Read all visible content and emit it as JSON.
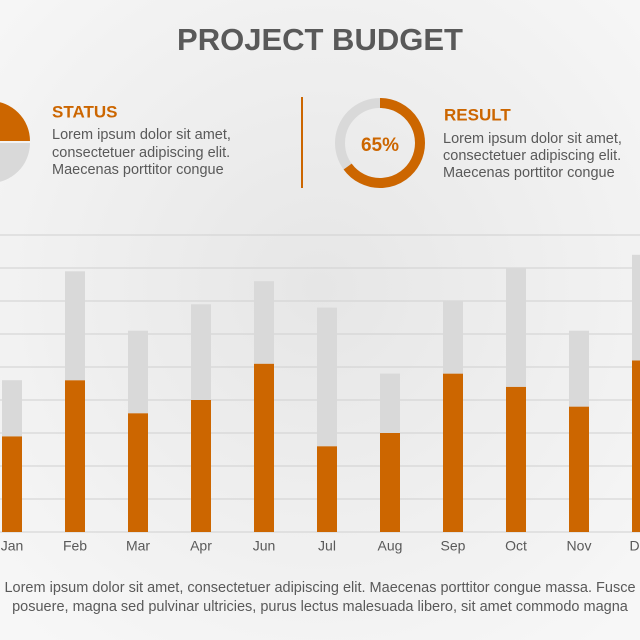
{
  "header": {
    "title": "PROJECT BUDGET"
  },
  "status": {
    "heading": "STATUS",
    "lines": [
      "Lorem ipsum dolor sit amet,",
      "consectetuer adipiscing elit.",
      "Maecenas porttitor congue"
    ]
  },
  "result": {
    "heading": "RESULT",
    "value": 65,
    "value_label": "65%",
    "lines": [
      "Lorem ipsum dolor sit amet,",
      "consectetuer adipiscing elit.",
      "Maecenas porttitor congue"
    ]
  },
  "chart_data": {
    "type": "bar",
    "stacked": true,
    "categories": [
      "Jan",
      "Feb",
      "Mar",
      "Apr",
      "Jun",
      "Jul",
      "Aug",
      "Sep",
      "Oct",
      "Nov",
      "Dec"
    ],
    "series": [
      {
        "color": "#cc6600",
        "values": [
          2.9,
          4.6,
          3.6,
          4.0,
          5.1,
          2.6,
          3.0,
          4.8,
          4.4,
          3.8,
          5.2
        ]
      },
      {
        "color": "#d9d9d9",
        "values": [
          1.7,
          3.3,
          2.5,
          2.9,
          2.5,
          4.2,
          1.8,
          2.2,
          3.6,
          2.3,
          3.2
        ]
      }
    ],
    "ylim": [
      0,
      9
    ],
    "yticks": [
      0,
      1,
      2,
      3,
      4,
      5,
      6,
      7,
      8,
      9
    ],
    "grid": true
  },
  "footer": {
    "lines": [
      "Lorem ipsum dolor sit amet, consectetuer adipiscing elit. Maecenas porttitor congue massa. Fusce",
      "posuere, magna sed pulvinar ultricies, purus lectus malesuada libero, sit amet commodo magna"
    ]
  }
}
